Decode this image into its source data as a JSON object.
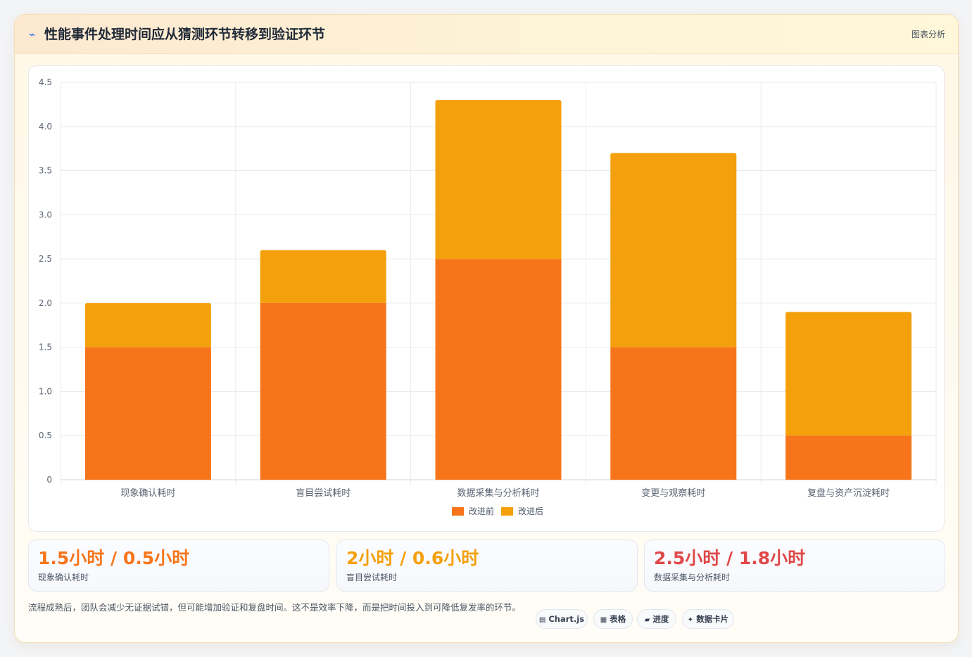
{
  "header": {
    "icon": "chart-spark-icon",
    "title": "性能事件处理时间应从猜测环节转移到验证环节",
    "tag": "图表分析"
  },
  "colors": {
    "before": "#f7751a",
    "after": "#f4a00c",
    "stat1": "#f7751a",
    "stat2": "#f4a00c",
    "stat3": "#e04848"
  },
  "chart_data": {
    "type": "bar",
    "stacked": true,
    "categories": [
      "现象确认耗时",
      "盲目尝试耗时",
      "数据采集与分析耗时",
      "变更与观察耗时",
      "复盘与资产沉淀耗时"
    ],
    "series": [
      {
        "name": "改进前",
        "values": [
          1.5,
          2.0,
          2.5,
          1.5,
          0.5
        ]
      },
      {
        "name": "改进后",
        "values": [
          0.5,
          0.6,
          1.8,
          2.2,
          1.4
        ]
      }
    ],
    "ylim": [
      0,
      4.5
    ],
    "yticks": [
      "0",
      "0.5",
      "1.0",
      "1.5",
      "2.0",
      "2.5",
      "3.0",
      "3.5",
      "4.0",
      "4.5"
    ],
    "grid": true,
    "legend_position": "bottom-center"
  },
  "stats": [
    {
      "value": "1.5小时 / 0.5小时",
      "label": "现象确认耗时"
    },
    {
      "value": "2小时 / 0.6小时",
      "label": "盲目尝试耗时"
    },
    {
      "value": "2.5小时 / 1.8小时",
      "label": "数据采集与分析耗时"
    }
  ],
  "footer": {
    "note": "流程成熟后，团队会减少无证据试错，但可能增加验证和复盘时间。这不是效率下降，而是把时间投入到可降低复发率的环节。"
  },
  "chips": [
    {
      "icon": "chart-icon",
      "glyph": "▤",
      "label": "Chart.js"
    },
    {
      "icon": "table-icon",
      "glyph": "▦",
      "label": "表格"
    },
    {
      "icon": "progress-icon",
      "glyph": "▰",
      "label": "进度"
    },
    {
      "icon": "sparkle-icon",
      "glyph": "✦",
      "label": "数据卡片"
    }
  ]
}
